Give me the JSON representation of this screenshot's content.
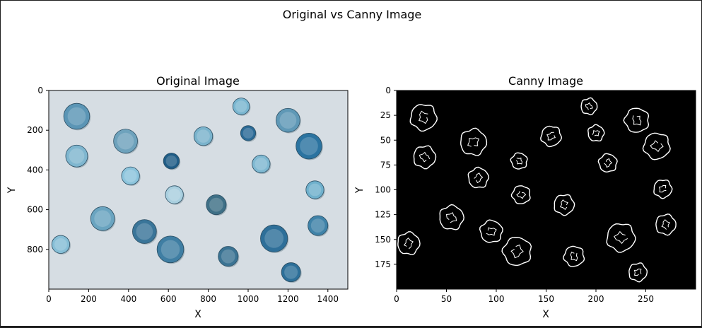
{
  "figure": {
    "suptitle": "Original vs Canny Image"
  },
  "chart_data": [
    {
      "type": "image",
      "title": "Original Image",
      "xlabel": "X",
      "ylabel": "Y",
      "xlim": [
        0,
        1500
      ],
      "ylim": [
        1000,
        0
      ],
      "xticks": [
        0,
        200,
        400,
        600,
        800,
        1000,
        1200,
        1400
      ],
      "yticks": [
        0,
        200,
        400,
        600,
        800
      ],
      "background_color": "#d6dde3",
      "coins": [
        {
          "x": 140,
          "y": 130,
          "r": 65,
          "fill": "#5b95b5"
        },
        {
          "x": 140,
          "y": 330,
          "r": 55,
          "fill": "#7fb6cf"
        },
        {
          "x": 385,
          "y": 255,
          "r": 60,
          "fill": "#6ea2bc"
        },
        {
          "x": 410,
          "y": 430,
          "r": 45,
          "fill": "#8cc4dc"
        },
        {
          "x": 615,
          "y": 355,
          "r": 40,
          "fill": "#1f5c86"
        },
        {
          "x": 630,
          "y": 525,
          "r": 45,
          "fill": "#a9cfdf"
        },
        {
          "x": 775,
          "y": 230,
          "r": 47,
          "fill": "#7ab3cc"
        },
        {
          "x": 965,
          "y": 80,
          "r": 42,
          "fill": "#7ab6d0"
        },
        {
          "x": 1000,
          "y": 215,
          "r": 38,
          "fill": "#2a6a96"
        },
        {
          "x": 1065,
          "y": 370,
          "r": 45,
          "fill": "#7fb8d1"
        },
        {
          "x": 1200,
          "y": 150,
          "r": 60,
          "fill": "#5f98b6"
        },
        {
          "x": 1305,
          "y": 280,
          "r": 65,
          "fill": "#2b73a0"
        },
        {
          "x": 1335,
          "y": 500,
          "r": 45,
          "fill": "#6fb0cc"
        },
        {
          "x": 1350,
          "y": 680,
          "r": 50,
          "fill": "#3f82a8"
        },
        {
          "x": 270,
          "y": 645,
          "r": 60,
          "fill": "#6aa4c0"
        },
        {
          "x": 480,
          "y": 710,
          "r": 60,
          "fill": "#3a7599"
        },
        {
          "x": 610,
          "y": 800,
          "r": 67,
          "fill": "#3f7ea3"
        },
        {
          "x": 840,
          "y": 575,
          "r": 50,
          "fill": "#3e6f86"
        },
        {
          "x": 900,
          "y": 835,
          "r": 50,
          "fill": "#3b7393"
        },
        {
          "x": 1130,
          "y": 745,
          "r": 68,
          "fill": "#2e6f99"
        },
        {
          "x": 1215,
          "y": 915,
          "r": 48,
          "fill": "#2d6f99"
        },
        {
          "x": 60,
          "y": 775,
          "r": 45,
          "fill": "#86bed6"
        }
      ]
    },
    {
      "type": "image",
      "title": "Canny Image",
      "xlabel": "X",
      "ylabel": "Y",
      "xlim": [
        0,
        300
      ],
      "ylim": [
        200,
        0
      ],
      "xticks": [
        0,
        50,
        100,
        150,
        200,
        250
      ],
      "yticks": [
        0,
        25,
        50,
        75,
        100,
        125,
        150,
        175
      ],
      "background_color": "#000000",
      "edge_color": "#ffffff",
      "circles": [
        {
          "x": 27,
          "y": 27,
          "r": 13
        },
        {
          "x": 28,
          "y": 67,
          "r": 11
        },
        {
          "x": 77,
          "y": 52,
          "r": 13
        },
        {
          "x": 82,
          "y": 88,
          "r": 10
        },
        {
          "x": 123,
          "y": 71,
          "r": 8
        },
        {
          "x": 125,
          "y": 105,
          "r": 9
        },
        {
          "x": 155,
          "y": 46,
          "r": 10
        },
        {
          "x": 168,
          "y": 115,
          "r": 10
        },
        {
          "x": 193,
          "y": 16,
          "r": 8
        },
        {
          "x": 200,
          "y": 43,
          "r": 8
        },
        {
          "x": 212,
          "y": 73,
          "r": 9
        },
        {
          "x": 241,
          "y": 30,
          "r": 12
        },
        {
          "x": 261,
          "y": 56,
          "r": 13
        },
        {
          "x": 267,
          "y": 99,
          "r": 9
        },
        {
          "x": 270,
          "y": 135,
          "r": 10
        },
        {
          "x": 55,
          "y": 128,
          "r": 12
        },
        {
          "x": 95,
          "y": 142,
          "r": 11
        },
        {
          "x": 121,
          "y": 162,
          "r": 14
        },
        {
          "x": 178,
          "y": 167,
          "r": 10
        },
        {
          "x": 225,
          "y": 148,
          "r": 14
        },
        {
          "x": 242,
          "y": 183,
          "r": 9
        },
        {
          "x": 12,
          "y": 154,
          "r": 11
        }
      ]
    }
  ]
}
